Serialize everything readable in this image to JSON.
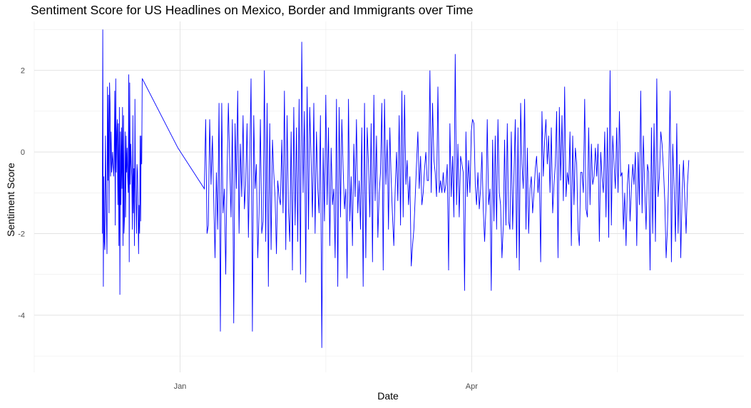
{
  "chart_data": {
    "type": "line",
    "title": "Sentiment Score for US Headlines on Mexico, Border and Immigrants over Time",
    "xlabel": "Date",
    "ylabel": "Sentiment Score",
    "x_tick_labels": [
      "Jan",
      "Apr"
    ],
    "x_tick_positions_days": [
      31,
      121
    ],
    "y_ticks": [
      2,
      0,
      -2,
      -4
    ],
    "ylim": [
      -5.4,
      3.2
    ],
    "xlim_days": [
      -14,
      205
    ],
    "x_unit": "days since Dec 1",
    "grid": true,
    "series": [
      {
        "name": "sentiment",
        "color": "#0000ff",
        "x_start_day": 7,
        "x_step_days": 0.35,
        "values": [
          -2.0,
          3.0,
          -3.3,
          -0.6,
          -2.2,
          -2.4,
          0.4,
          -0.7,
          -1.6,
          -2.5,
          1.6,
          -0.7,
          1.4,
          -1.5,
          1.7,
          1.2,
          -0.6,
          0.5,
          -0.5,
          -0.3,
          0.0,
          -0.3,
          -0.6,
          -0.2,
          1.5,
          -1.8,
          1.8,
          -0.5,
          0.5,
          0.8,
          -1.3,
          0.7,
          -2.3,
          1.1,
          -3.5,
          0.5,
          -1.3,
          0.6,
          -0.9,
          1.1,
          -2.3,
          0.9,
          -2.0,
          -1.6,
          0.5,
          -1.6,
          0.4,
          -0.5,
          0.1,
          -0.6,
          -1.0,
          1.9,
          -2.7,
          1.7,
          -0.8,
          0.2,
          -0.3,
          -0.6,
          -1.9,
          0.9,
          -1.5,
          -0.4,
          -2.3,
          1.3,
          -0.8,
          -1.3,
          -2.0,
          -0.3,
          -0.5,
          -1.4,
          -2.5,
          -1.3,
          -2.0,
          0.4,
          -1.7,
          0.4,
          -0.3,
          1.8,
          0.1,
          -0.9,
          0.8,
          -2.0,
          -1.8,
          0.8,
          -0.8,
          0.4,
          -1.1,
          -2.6,
          -0.5,
          -1.9,
          1.2,
          -4.4,
          1.2,
          -1.5,
          -0.9,
          -3.0,
          -0.6,
          1.2,
          -0.3,
          -1.6,
          0.8,
          -4.2,
          0.7,
          -0.9,
          1.5,
          -2.0,
          0.2,
          -1.1,
          0.9,
          -1.4,
          -0.8,
          0.7,
          -2.1,
          -0.3,
          1.8,
          -4.4,
          0.9,
          -0.9,
          -0.3,
          -2.6,
          -1.5,
          0.8,
          -2.0,
          -1.7,
          2.0,
          -2.2,
          1.2,
          -3.3,
          0.7,
          -2.4,
          0.3,
          -0.5,
          -1.1,
          -2.5,
          -0.7,
          -1.1,
          -1.3,
          0.3,
          -1.5,
          1.5,
          -2.4,
          0.9,
          -1.4,
          -2.2,
          0.5,
          -2.9,
          1.1,
          -1.8,
          0.6,
          -2.2,
          1.3,
          -3.0,
          2.7,
          -1.0,
          1.0,
          -3.2,
          1.6,
          -1.9,
          1.1,
          -0.2,
          -1.6,
          1.2,
          -2.0,
          0.5,
          -0.9,
          -1.5,
          0.9,
          -4.8,
          0.1,
          -1.7,
          1.4,
          -1.3,
          0.6,
          -2.3,
          0.1,
          -1.3,
          -0.9,
          -2.6,
          1.3,
          -3.3,
          1.1,
          -1.6,
          0.8,
          -0.4,
          -1.4,
          -0.9,
          -3.1,
          1.3,
          -1.7,
          -0.6,
          -2.3,
          0.2,
          -1.1,
          0.8,
          -1.5,
          -0.7,
          -1.9,
          0.6,
          -3.3,
          1.2,
          -2.6,
          0.6,
          -0.3,
          -1.6,
          0.7,
          -2.7,
          1.4,
          -1.2,
          0.4,
          -2.1,
          -1.0,
          -0.5,
          1.2,
          -2.9,
          1.3,
          -0.8,
          0.3,
          -1.9,
          0.6,
          -0.7,
          -1.6,
          -2.3,
          -0.9,
          0.0,
          -1.2,
          0.9,
          -1.8,
          1.5,
          -1.6,
          1.4,
          -0.8,
          -0.2,
          -1.3,
          -0.6,
          -2.8,
          -2.3,
          -1.9,
          -1.1,
          -0.3,
          0.5,
          -0.9,
          -0.1,
          -1.3,
          -1.0,
          -0.4,
          0.0,
          -0.7,
          -0.7,
          2.0,
          -1.0,
          1.2,
          -0.2,
          -0.5,
          -1.1,
          1.6,
          -1.0,
          -0.7,
          -1.0,
          -0.5,
          -1.0,
          -0.8,
          -0.3,
          -2.9,
          0.7,
          -1.1,
          -0.1,
          -1.6,
          2.4,
          -1.3,
          0.2,
          -1.6,
          -0.1,
          -0.3,
          -0.5,
          -3.4,
          0.5,
          -1.1,
          -0.2,
          -1.0,
          0.5,
          0.8,
          0.7,
          -0.8,
          -1.3,
          -0.5,
          -1.4,
          -0.9,
          0.0,
          -1.4,
          -2.2,
          -1.4,
          0.8,
          -1.3,
          -0.9,
          -3.4,
          0.3,
          -1.7,
          0.4,
          -1.9,
          0.8,
          -1.0,
          -1.3,
          -2.6,
          -1.8,
          0.3,
          -1.8,
          0.7,
          -1.7,
          -1.9,
          0.5,
          -1.9,
          -0.6,
          0.8,
          -2.6,
          0.6,
          -2.9,
          1.2,
          -0.3,
          -0.9,
          1.3,
          -1.9,
          0.1,
          -2.0,
          -0.9,
          -0.6,
          -1.5,
          -1.0,
          -0.4,
          -0.1,
          -1.0,
          -0.5,
          -2.7,
          1.0,
          -0.6,
          0.3,
          0.8,
          -0.3,
          0.4,
          -1.0,
          0.6,
          -1.5,
          -0.8,
          -0.3,
          1.0,
          -2.6,
          1.1,
          -0.7,
          0.9,
          -1.2,
          1.6,
          -1.1,
          -0.5,
          -0.8,
          0.5,
          -2.3,
          0.4,
          -1.3,
          0.1,
          -0.3,
          -1.9,
          -2.3,
          -0.5,
          -0.5,
          -1.0,
          1.3,
          -1.4,
          -1.6,
          0.6,
          -1.3,
          0.2,
          -0.8,
          -0.6,
          0.1,
          -0.6,
          0.2,
          -2.2,
          0.0,
          -0.6,
          -1.0,
          0.5,
          -1.6,
          0.6,
          -2.1,
          2.0,
          -1.8,
          0.4,
          -0.3,
          -0.9,
          0.6,
          -1.0,
          1.0,
          -0.6,
          -0.5,
          -1.9,
          -1.0,
          -2.3,
          -0.8,
          -0.3,
          -1.7,
          -0.9,
          -0.3,
          -0.8,
          0.0,
          -2.3,
          0.0,
          -1.3,
          1.5,
          -1.5,
          0.4,
          -0.9,
          -1.9,
          -0.3,
          -0.5,
          -2.9,
          0.6,
          -2.0,
          0.7,
          -2.2,
          1.8,
          -1.1,
          -0.6,
          0.5,
          0.2,
          -0.4,
          -1.2,
          -2.6,
          -1.9,
          -0.5,
          1.5,
          -2.7,
          0.2,
          -0.9,
          -2.2,
          0.7,
          -2.0,
          -0.3,
          -2.6,
          -1.0,
          -0.2,
          -1.1,
          -2.0,
          -0.8,
          -0.2
        ]
      },
      {
        "name": "sentiment-early",
        "color": "#0000ff",
        "x_start_day": 7,
        "x_step_days": 0.16,
        "values": [
          -2.0,
          3.05,
          -3.3,
          -0.6,
          -2.2,
          -2.4,
          0.5,
          -0.7,
          -1.5,
          -2.5,
          1.65,
          -0.7,
          1.4,
          -1.5,
          1.7,
          1.2,
          -0.6,
          0.45,
          -0.5,
          -0.3,
          0.05,
          -0.35,
          -0.6,
          -0.2,
          1.5,
          -1.8,
          1.8,
          -0.5,
          0.5,
          0.8,
          -1.3,
          0.7,
          -2.3,
          1.1,
          -3.55,
          0.5,
          -1.3,
          0.6,
          -0.9,
          1.15,
          -2.35,
          0.9,
          -2.0,
          -1.6,
          0.5,
          -1.6,
          0.4,
          -0.5,
          0.1,
          -0.6,
          -1.0,
          1.9,
          -2.75,
          1.7,
          -0.8,
          0.2,
          -0.3,
          -0.6,
          -1.9,
          0.9,
          -1.5,
          -0.4,
          -2.3,
          1.3,
          -0.8,
          -1.3,
          -2.0,
          -0.3,
          -0.5,
          -1.4,
          -2.5,
          -1.3,
          -2.0,
          0.4,
          -1.7,
          0.4,
          -0.3,
          1.8
        ]
      }
    ]
  }
}
